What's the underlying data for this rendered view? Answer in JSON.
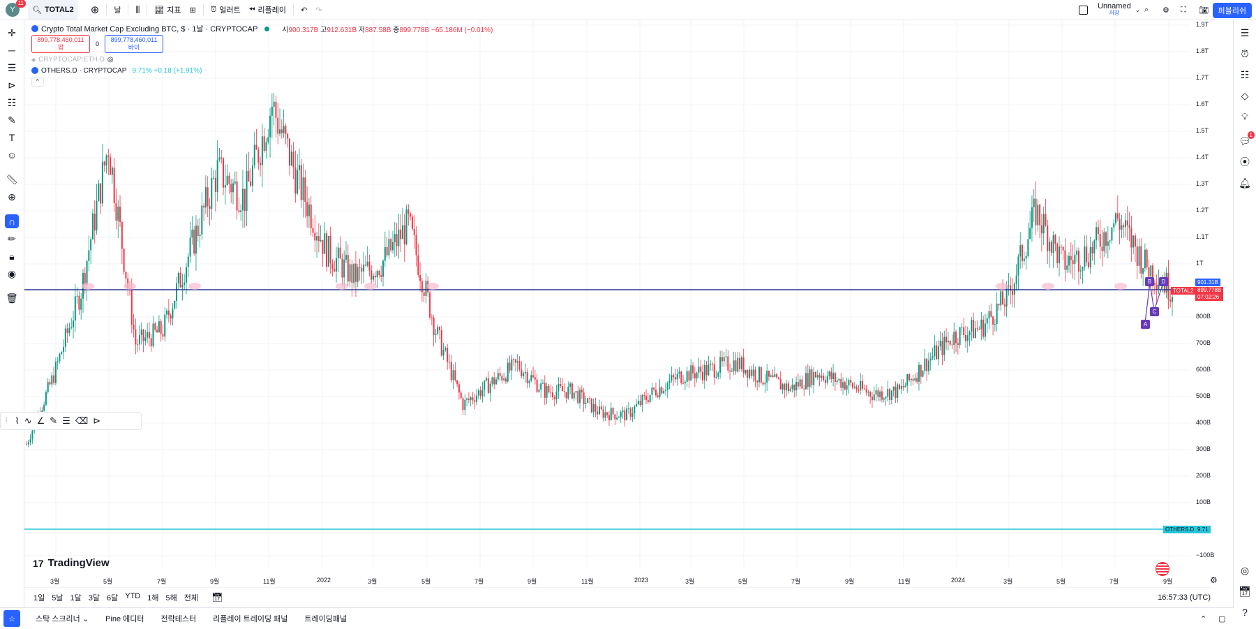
{
  "user": {
    "avatar_letter": "Y",
    "notifications": "11"
  },
  "toolbar": {
    "symbol": "TOTAL2",
    "interval": "날",
    "indicators": "지표",
    "alerts": "얼러트",
    "replay": "리플레이",
    "layout_name": "Unnamed",
    "layout_status": "저장",
    "publish": "퍼블리쉬"
  },
  "legend": {
    "title": "Crypto Total Market Cap Excluding BTC, $ · 1날 · CRYPTOCAP",
    "ohlc": {
      "o_label": "시",
      "o": "900.317B",
      "h_label": "고",
      "h": "912.631B",
      "l_label": "저",
      "l": "887.58B",
      "c_label": "종",
      "c": "899.778B",
      "chg": "−65.186M (−0.01%)"
    },
    "sell_price": "899,778,460,011",
    "sell_label": "팜",
    "spread": "0",
    "buy_price": "899,778,460,011",
    "buy_label": "바이",
    "hidden_series": "CRYPTOCAP:ETH.D",
    "overlay_series": "OTHERS.D · CRYPTOCAP",
    "overlay_values": "9.71%  +0.18 (+1.91%)"
  },
  "price_axis": [
    "1.9T",
    "1.8T",
    "1.7T",
    "1.6T",
    "1.5T",
    "1.4T",
    "1.3T",
    "1.2T",
    "1.1T",
    "1T",
    "800B",
    "700B",
    "600B",
    "500B",
    "400B",
    "300B",
    "200B",
    "100B",
    "−100B"
  ],
  "price_tags": {
    "level": "901.31B",
    "symbol": "TOTAL2",
    "current": "899.778B",
    "countdown": "07:02:26",
    "others_symbol": "OTHERS.D",
    "others_value": "9.71"
  },
  "time_axis": [
    "3월",
    "5월",
    "7월",
    "9월",
    "11월",
    "2022",
    "3월",
    "5월",
    "7월",
    "9월",
    "11월",
    "2023",
    "3월",
    "5월",
    "7월",
    "9월",
    "11월",
    "2024",
    "3월",
    "5월",
    "7월",
    "9월"
  ],
  "pattern_labels": [
    "A",
    "B",
    "C",
    "D"
  ],
  "brand": "TradingView",
  "timeframes": [
    "1일",
    "5날",
    "1달",
    "3달",
    "6달",
    "YTD",
    "1해",
    "5해",
    "전체"
  ],
  "clock": "16:57:33 (UTC)",
  "bottom_tabs": [
    "스탁 스크리너",
    "Pine 에디터",
    "전략테스터",
    "리플레이 트레이딩 패널",
    "트레이딩패널"
  ],
  "chart_data": {
    "type": "candlestick",
    "symbol": "TOTAL2",
    "y_unit": "USD",
    "ylim": [
      -100000000000,
      1900000000000
    ],
    "x_range": [
      "2021-02",
      "2024-08"
    ],
    "close_series": [
      {
        "date": "2021-02",
        "close": 0.32
      },
      {
        "date": "2021-03",
        "close": 0.58
      },
      {
        "date": "2021-04",
        "close": 0.9
      },
      {
        "date": "2021-05",
        "close": 1.45
      },
      {
        "date": "2021-06",
        "close": 0.7
      },
      {
        "date": "2021-07",
        "close": 0.75
      },
      {
        "date": "2021-08",
        "close": 1.05
      },
      {
        "date": "2021-09",
        "close": 1.35
      },
      {
        "date": "2021-10",
        "close": 1.25
      },
      {
        "date": "2021-11",
        "close": 1.6
      },
      {
        "date": "2021-12",
        "close": 1.3
      },
      {
        "date": "2022-01",
        "close": 1.05
      },
      {
        "date": "2022-02",
        "close": 0.95
      },
      {
        "date": "2022-03",
        "close": 1.0
      },
      {
        "date": "2022-04",
        "close": 1.15
      },
      {
        "date": "2022-05",
        "close": 0.75
      },
      {
        "date": "2022-06",
        "close": 0.47
      },
      {
        "date": "2022-07",
        "close": 0.55
      },
      {
        "date": "2022-08",
        "close": 0.62
      },
      {
        "date": "2022-09",
        "close": 0.52
      },
      {
        "date": "2022-10",
        "close": 0.52
      },
      {
        "date": "2022-11",
        "close": 0.44
      },
      {
        "date": "2022-12",
        "close": 0.43
      },
      {
        "date": "2023-01",
        "close": 0.52
      },
      {
        "date": "2023-02",
        "close": 0.58
      },
      {
        "date": "2023-03",
        "close": 0.6
      },
      {
        "date": "2023-04",
        "close": 0.63
      },
      {
        "date": "2023-05",
        "close": 0.57
      },
      {
        "date": "2023-06",
        "close": 0.53
      },
      {
        "date": "2023-07",
        "close": 0.59
      },
      {
        "date": "2023-08",
        "close": 0.55
      },
      {
        "date": "2023-09",
        "close": 0.51
      },
      {
        "date": "2023-10",
        "close": 0.52
      },
      {
        "date": "2023-11",
        "close": 0.63
      },
      {
        "date": "2023-12",
        "close": 0.73
      },
      {
        "date": "2024-01",
        "close": 0.76
      },
      {
        "date": "2024-02",
        "close": 0.88
      },
      {
        "date": "2024-03",
        "close": 1.2
      },
      {
        "date": "2024-04",
        "close": 1.0
      },
      {
        "date": "2024-05",
        "close": 1.05
      },
      {
        "date": "2024-06",
        "close": 1.17
      },
      {
        "date": "2024-07",
        "close": 1.0
      },
      {
        "date": "2024-08",
        "close": 0.9
      }
    ],
    "close_unit": "T",
    "horizontal_lines": [
      {
        "price": 901310000000,
        "color": "#283593"
      }
    ],
    "others_d": {
      "value": 9.71,
      "color": "#26c6da"
    }
  },
  "colors": {
    "up": "#089981",
    "down": "#f23645",
    "accent": "#2962ff"
  }
}
